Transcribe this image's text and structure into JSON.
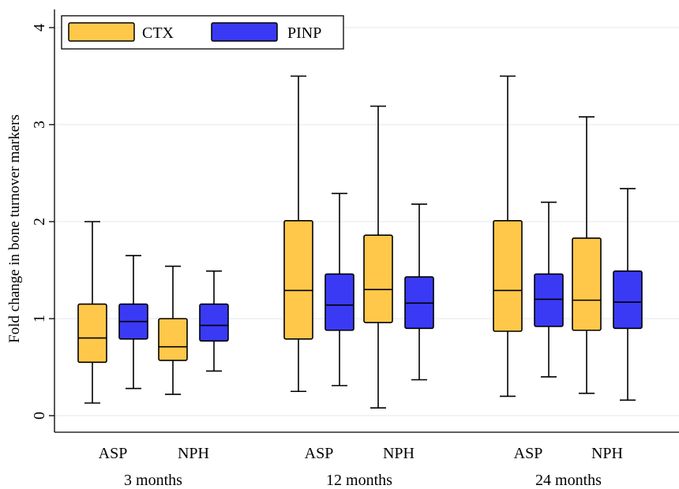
{
  "chart_data": {
    "type": "boxplot",
    "ylabel": "Fold change in bone turnover markers",
    "ylim": [
      0,
      4
    ],
    "yticks": [
      "0",
      "1",
      "2",
      "3",
      "4"
    ],
    "grid": true,
    "legend_position": "top-left",
    "series": [
      {
        "name": "CTX",
        "color": "#ffc84a"
      },
      {
        "name": "PINP",
        "color": "#3a3af5"
      }
    ],
    "periods": [
      {
        "label": "3 months",
        "groups": [
          {
            "label": "ASP",
            "boxes": [
              {
                "series": "CTX",
                "min": 0.13,
                "q1": 0.55,
                "median": 0.8,
                "q3": 1.15,
                "max": 2.0
              },
              {
                "series": "PINP",
                "min": 0.28,
                "q1": 0.79,
                "median": 0.97,
                "q3": 1.15,
                "max": 1.65
              }
            ]
          },
          {
            "label": "NPH",
            "boxes": [
              {
                "series": "CTX",
                "min": 0.22,
                "q1": 0.57,
                "median": 0.71,
                "q3": 1.0,
                "max": 1.54
              },
              {
                "series": "PINP",
                "min": 0.46,
                "q1": 0.77,
                "median": 0.93,
                "q3": 1.15,
                "max": 1.49
              }
            ]
          }
        ]
      },
      {
        "label": "12 months",
        "groups": [
          {
            "label": "ASP",
            "boxes": [
              {
                "series": "CTX",
                "min": 0.25,
                "q1": 0.79,
                "median": 1.29,
                "q3": 2.01,
                "max": 3.5
              },
              {
                "series": "PINP",
                "min": 0.31,
                "q1": 0.88,
                "median": 1.14,
                "q3": 1.46,
                "max": 2.29
              }
            ]
          },
          {
            "label": "NPH",
            "boxes": [
              {
                "series": "CTX",
                "min": 0.08,
                "q1": 0.96,
                "median": 1.3,
                "q3": 1.86,
                "max": 3.19
              },
              {
                "series": "PINP",
                "min": 0.37,
                "q1": 0.9,
                "median": 1.16,
                "q3": 1.43,
                "max": 2.18
              }
            ]
          }
        ]
      },
      {
        "label": "24 months",
        "groups": [
          {
            "label": "ASP",
            "boxes": [
              {
                "series": "CTX",
                "min": 0.2,
                "q1": 0.87,
                "median": 1.29,
                "q3": 2.01,
                "max": 3.5
              },
              {
                "series": "PINP",
                "min": 0.4,
                "q1": 0.92,
                "median": 1.2,
                "q3": 1.46,
                "max": 2.2
              }
            ]
          },
          {
            "label": "NPH",
            "boxes": [
              {
                "series": "CTX",
                "min": 0.23,
                "q1": 0.88,
                "median": 1.19,
                "q3": 1.83,
                "max": 3.08
              },
              {
                "series": "PINP",
                "min": 0.16,
                "q1": 0.9,
                "median": 1.17,
                "q3": 1.49,
                "max": 2.34
              }
            ]
          }
        ]
      }
    ]
  }
}
